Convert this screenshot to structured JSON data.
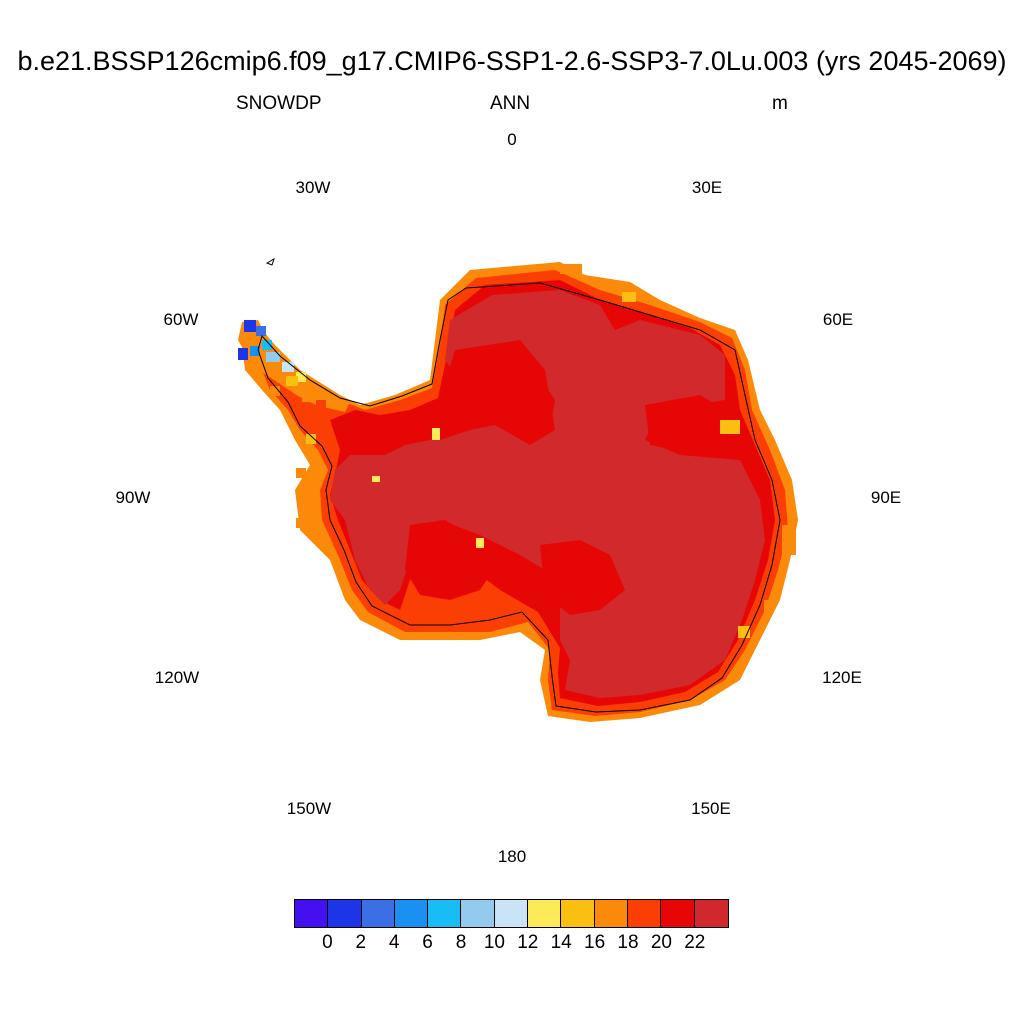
{
  "title": "b.e21.BSSP126cmip6.f09_g17.CMIP6-SSP1-2.6-SSP3-7.0Lu.003 (yrs 2045-2069)",
  "left_label": "SNOWDP",
  "center_label": "ANN",
  "right_label": "m",
  "longitude_labels": {
    "lon_0": "0",
    "lon_30e": "30E",
    "lon_60e": "60E",
    "lon_90e": "90E",
    "lon_120e": "120E",
    "lon_150e": "150E",
    "lon_180": "180",
    "lon_150w": "150W",
    "lon_120w": "120W",
    "lon_90w": "90W",
    "lon_60w": "60W",
    "lon_30w": "30W"
  },
  "colorbar": {
    "colors": [
      "#4410f0",
      "#1c35e8",
      "#3a6fe6",
      "#1a90f2",
      "#19bdf6",
      "#92cbee",
      "#c8e4f6",
      "#fdea58",
      "#fbbf12",
      "#fb8a0a",
      "#fb3e04",
      "#e60606",
      "#d0282c"
    ],
    "labels": [
      "0",
      "2",
      "4",
      "6",
      "8",
      "10",
      "12",
      "14",
      "16",
      "18",
      "20",
      "22"
    ]
  },
  "map_colors": {
    "interior": "#d2292c",
    "ring": "#e60606",
    "coast": "#fb3e04",
    "fringe": "#fb8a0a",
    "yellow": "#fbbf12"
  }
}
